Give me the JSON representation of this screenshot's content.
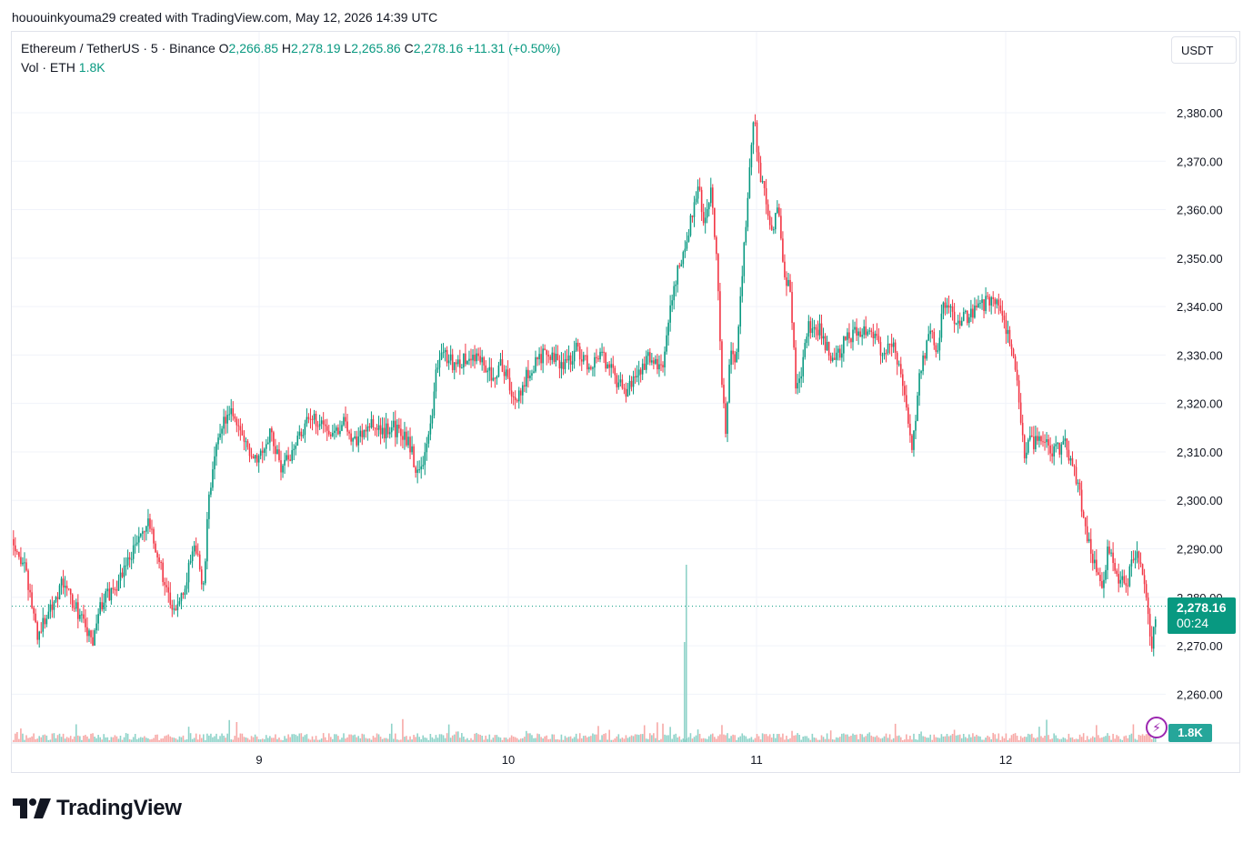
{
  "attribution": "hououinkyouma29 created with TradingView.com, May 12, 2026 14:39 UTC",
  "legend": {
    "symbol": "Ethereum / TetherUS · 5 · Binance",
    "o_label": "O",
    "o_value": "2,266.85",
    "h_label": "H",
    "h_value": "2,278.19",
    "l_label": "L",
    "l_value": "2,265.86",
    "c_label": "C",
    "c_value": "2,278.16",
    "change": "+11.31 (+0.50%)"
  },
  "volume_legend": {
    "label": "Vol · ETH",
    "value": "1.8K"
  },
  "currency_button": "USDT",
  "last_price": {
    "value": "2,278.16",
    "countdown": "00:24"
  },
  "volume_badge": "1.8K",
  "brand": "TradingView",
  "colors": {
    "up": "#089981",
    "down": "#f23645",
    "vol_up": "#8fd3c9",
    "vol_down": "#f7a9a7",
    "grid": "#f0f3fa"
  },
  "chart_data": {
    "type": "candlestick",
    "symbol": "Ethereum / TetherUS",
    "interval": "5",
    "x_ticks": [
      "9",
      "10",
      "11",
      "12"
    ],
    "y_ticks": [
      "2,260.00",
      "2,270.00",
      "2,280.00",
      "2,290.00",
      "2,300.00",
      "2,310.00",
      "2,320.00",
      "2,330.00",
      "2,340.00",
      "2,350.00",
      "2,360.00",
      "2,370.00",
      "2,380.00"
    ],
    "ylim": [
      2250,
      2390
    ],
    "last_price": 2278.16,
    "price_path": [
      [
        0.0,
        2292
      ],
      [
        0.01,
        2285
      ],
      [
        0.02,
        2272
      ],
      [
        0.03,
        2278
      ],
      [
        0.04,
        2283
      ],
      [
        0.055,
        2276
      ],
      [
        0.065,
        2270
      ],
      [
        0.07,
        2278
      ],
      [
        0.085,
        2283
      ],
      [
        0.1,
        2291
      ],
      [
        0.11,
        2295
      ],
      [
        0.12,
        2287
      ],
      [
        0.13,
        2276
      ],
      [
        0.14,
        2283
      ],
      [
        0.15,
        2291
      ],
      [
        0.155,
        2280
      ],
      [
        0.16,
        2302
      ],
      [
        0.17,
        2316
      ],
      [
        0.18,
        2318
      ],
      [
        0.19,
        2311
      ],
      [
        0.2,
        2309
      ],
      [
        0.21,
        2314
      ],
      [
        0.22,
        2306
      ],
      [
        0.23,
        2312
      ],
      [
        0.24,
        2316
      ],
      [
        0.25,
        2317
      ],
      [
        0.26,
        2314
      ],
      [
        0.27,
        2316
      ],
      [
        0.28,
        2312
      ],
      [
        0.29,
        2316
      ],
      [
        0.3,
        2314
      ],
      [
        0.31,
        2315
      ],
      [
        0.32,
        2313
      ],
      [
        0.325,
        2311
      ],
      [
        0.33,
        2305
      ],
      [
        0.34,
        2313
      ],
      [
        0.345,
        2325
      ],
      [
        0.35,
        2331
      ],
      [
        0.36,
        2328
      ],
      [
        0.37,
        2329
      ],
      [
        0.38,
        2330
      ],
      [
        0.39,
        2326
      ],
      [
        0.4,
        2328
      ],
      [
        0.41,
        2320
      ],
      [
        0.42,
        2326
      ],
      [
        0.43,
        2330
      ],
      [
        0.44,
        2329
      ],
      [
        0.45,
        2328
      ],
      [
        0.46,
        2331
      ],
      [
        0.47,
        2328
      ],
      [
        0.48,
        2330
      ],
      [
        0.49,
        2326
      ],
      [
        0.5,
        2322
      ],
      [
        0.51,
        2326
      ],
      [
        0.52,
        2330
      ],
      [
        0.53,
        2327
      ],
      [
        0.535,
        2335
      ],
      [
        0.54,
        2345
      ],
      [
        0.55,
        2352
      ],
      [
        0.555,
        2360
      ],
      [
        0.56,
        2366
      ],
      [
        0.565,
        2356
      ],
      [
        0.57,
        2365
      ],
      [
        0.575,
        2350
      ],
      [
        0.578,
        2330
      ],
      [
        0.582,
        2313
      ],
      [
        0.586,
        2333
      ],
      [
        0.59,
        2328
      ],
      [
        0.6,
        2362
      ],
      [
        0.605,
        2380
      ],
      [
        0.61,
        2368
      ],
      [
        0.62,
        2355
      ],
      [
        0.625,
        2362
      ],
      [
        0.63,
        2346
      ],
      [
        0.635,
        2343
      ],
      [
        0.64,
        2322
      ],
      [
        0.645,
        2328
      ],
      [
        0.65,
        2336
      ],
      [
        0.66,
        2335
      ],
      [
        0.67,
        2328
      ],
      [
        0.68,
        2333
      ],
      [
        0.69,
        2335
      ],
      [
        0.7,
        2336
      ],
      [
        0.71,
        2330
      ],
      [
        0.72,
        2333
      ],
      [
        0.73,
        2318
      ],
      [
        0.735,
        2310
      ],
      [
        0.74,
        2325
      ],
      [
        0.75,
        2335
      ],
      [
        0.755,
        2330
      ],
      [
        0.76,
        2341
      ],
      [
        0.77,
        2337
      ],
      [
        0.78,
        2338
      ],
      [
        0.79,
        2340
      ],
      [
        0.8,
        2342
      ],
      [
        0.81,
        2337
      ],
      [
        0.82,
        2325
      ],
      [
        0.826,
        2310
      ],
      [
        0.83,
        2312
      ],
      [
        0.84,
        2312
      ],
      [
        0.85,
        2310
      ],
      [
        0.86,
        2312
      ],
      [
        0.87,
        2303
      ],
      [
        0.88,
        2290
      ],
      [
        0.89,
        2283
      ],
      [
        0.895,
        2290
      ],
      [
        0.9,
        2285
      ],
      [
        0.91,
        2282
      ],
      [
        0.915,
        2288
      ],
      [
        0.92,
        2288
      ],
      [
        0.925,
        2282
      ],
      [
        0.93,
        2270
      ],
      [
        0.935,
        2278
      ]
    ],
    "volume_spike": {
      "date": "10",
      "value_note": "largest volume bar"
    }
  }
}
